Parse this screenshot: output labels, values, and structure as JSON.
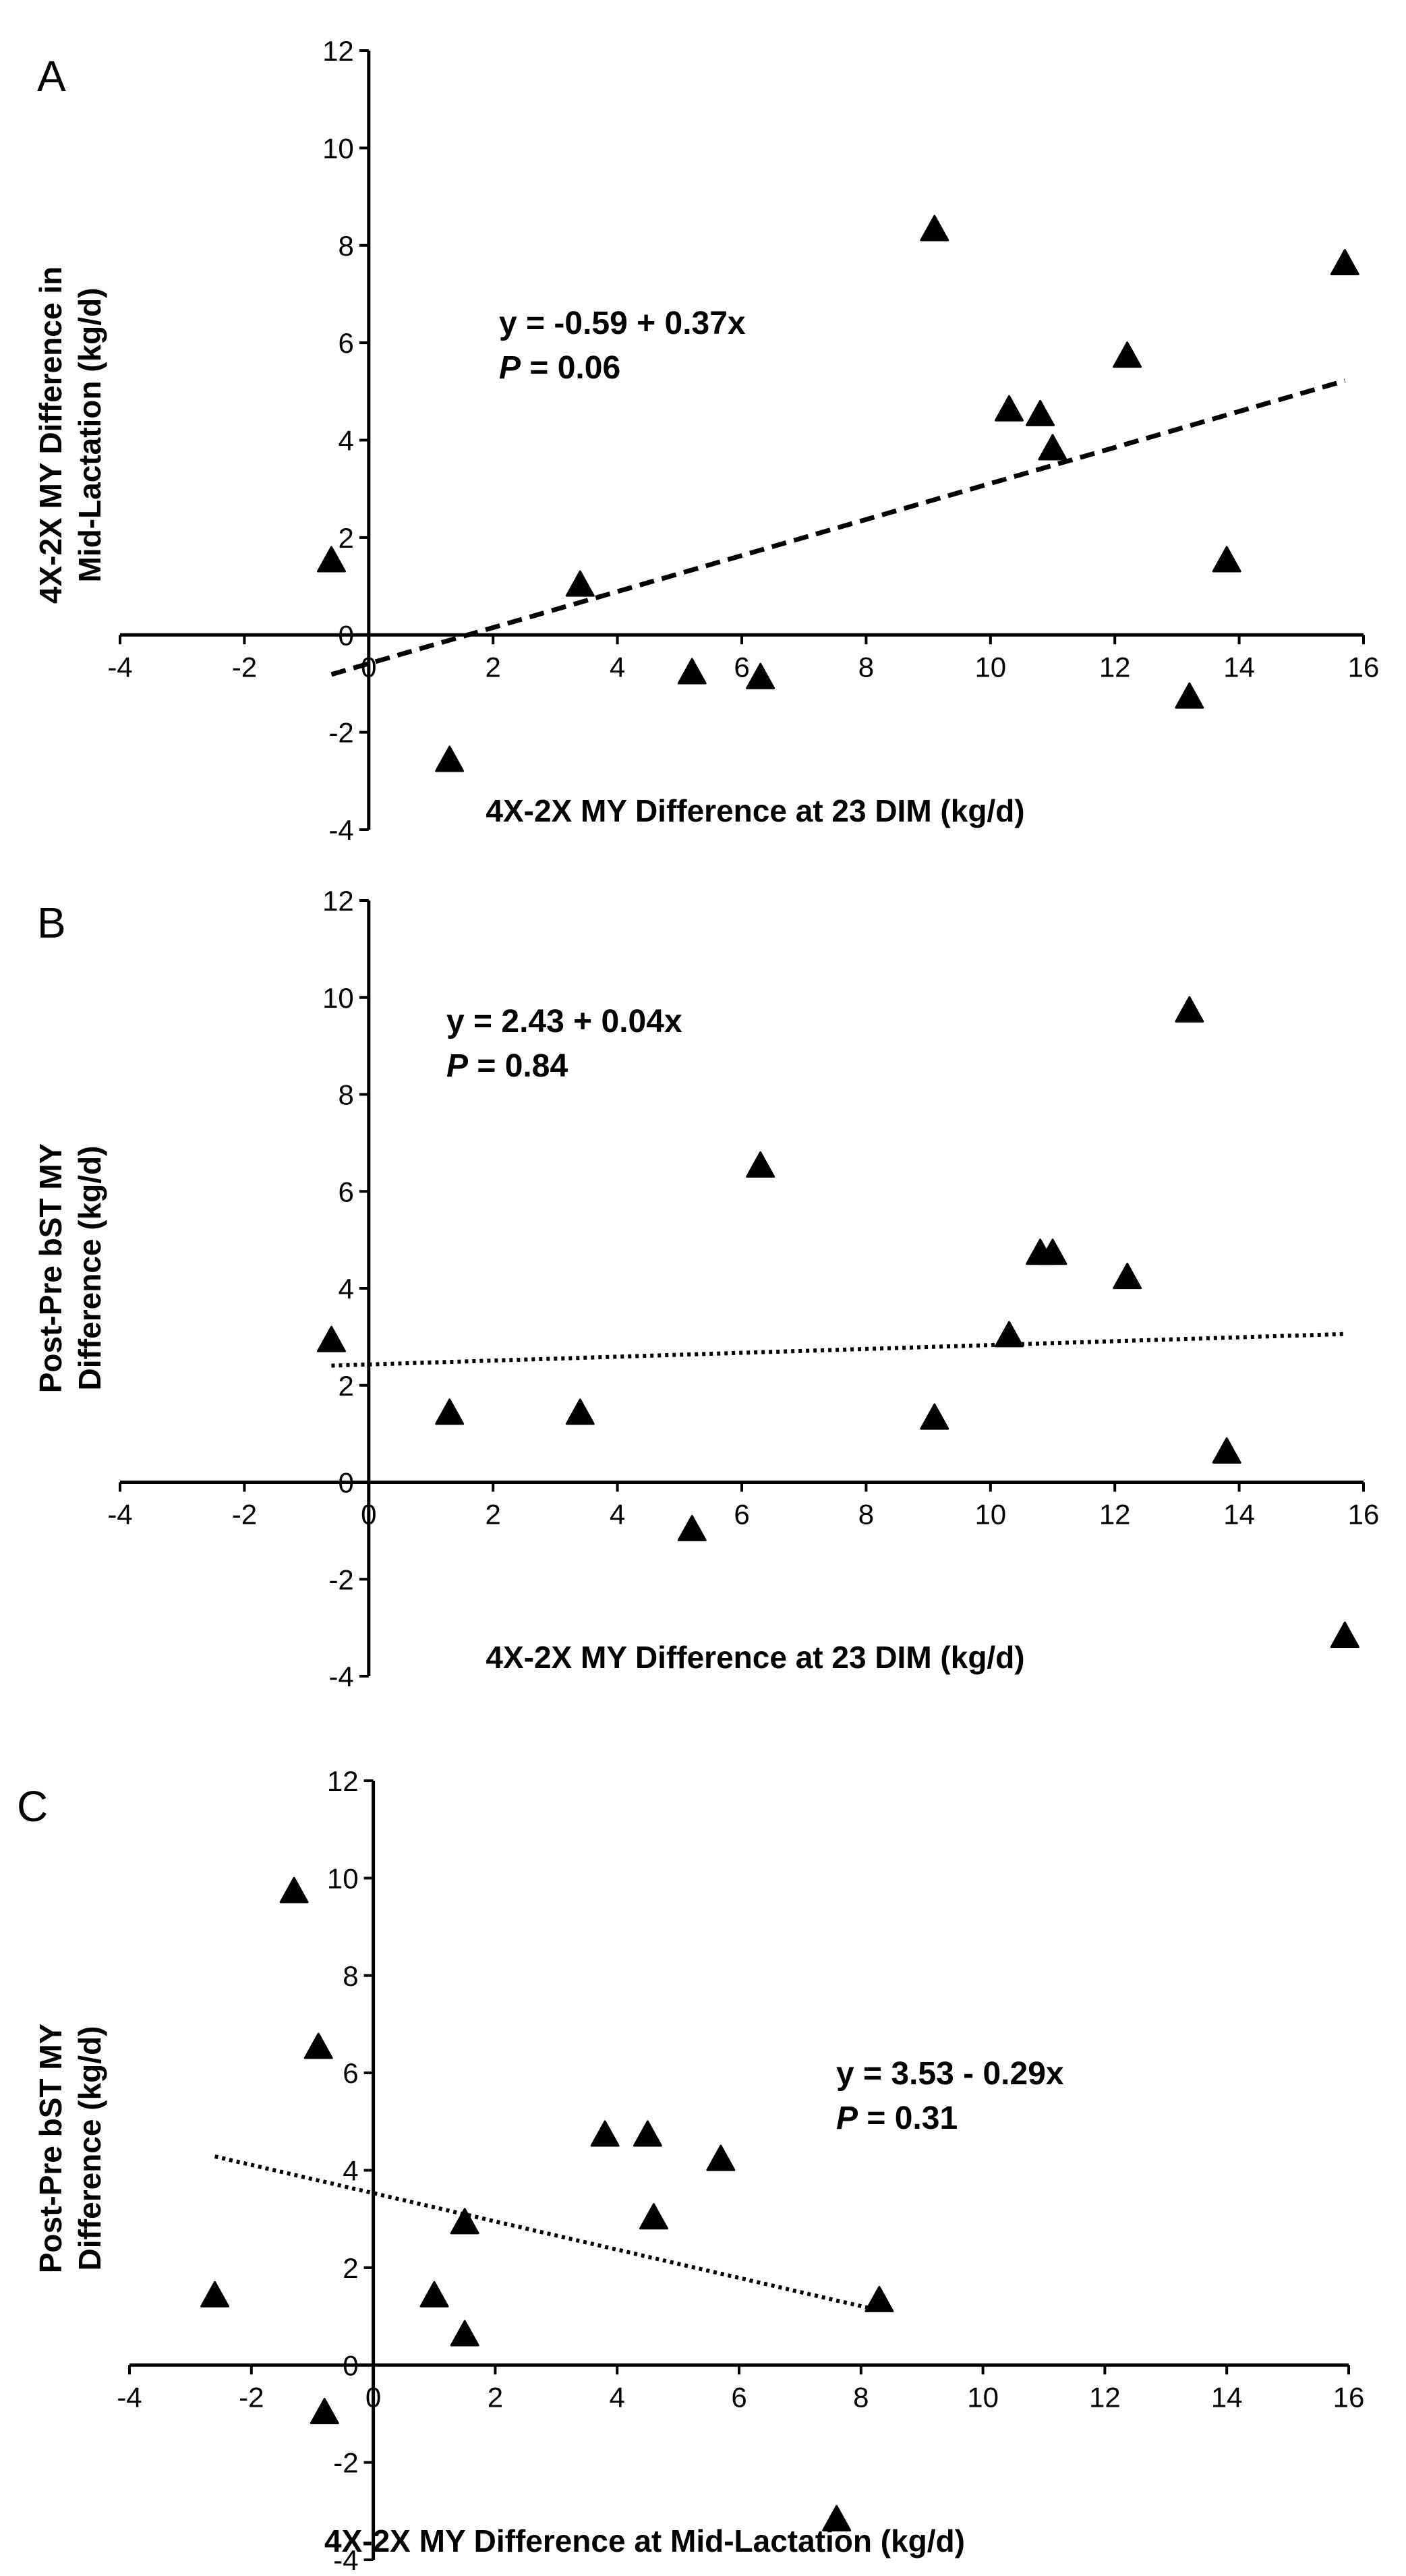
{
  "chart_data": [
    {
      "type": "scatter",
      "panel_label": "A",
      "xlabel": "4X-2X MY Difference at 23 DIM (kg/d)",
      "ylabel": [
        "4X-2X MY Difference in",
        "Mid-Lactation (kg/d)"
      ],
      "xlim": [
        -4,
        16
      ],
      "ylim": [
        -4,
        12
      ],
      "xticks": [
        "-4",
        "-2",
        "0",
        "2",
        "4",
        "6",
        "8",
        "10",
        "12",
        "14",
        "16"
      ],
      "yticks": [
        "-4",
        "-2",
        "0",
        "2",
        "4",
        "6",
        "8",
        "10",
        "12"
      ],
      "equation": "y = -0.59 + 0.37x",
      "p_label": "P",
      "p_value": "= 0.06",
      "trend": {
        "style": "dashed",
        "intercept": -0.59,
        "slope": 0.37,
        "x_range": [
          -0.6,
          15.7
        ]
      },
      "points": [
        {
          "x": -0.6,
          "y": 1.5
        },
        {
          "x": 1.3,
          "y": -2.6
        },
        {
          "x": 3.4,
          "y": 1.0
        },
        {
          "x": 5.2,
          "y": -0.8
        },
        {
          "x": 6.3,
          "y": -0.9
        },
        {
          "x": 9.1,
          "y": 8.3
        },
        {
          "x": 10.3,
          "y": 4.6
        },
        {
          "x": 10.8,
          "y": 4.5
        },
        {
          "x": 11.0,
          "y": 3.8
        },
        {
          "x": 12.2,
          "y": 5.7
        },
        {
          "x": 13.2,
          "y": -1.3
        },
        {
          "x": 13.8,
          "y": 1.5
        },
        {
          "x": 15.7,
          "y": 7.6
        }
      ]
    },
    {
      "type": "scatter",
      "panel_label": "B",
      "xlabel": "4X-2X MY Difference at 23 DIM (kg/d)",
      "ylabel": [
        "Post-Pre bST MY",
        "Difference (kg/d)"
      ],
      "xlim": [
        -4,
        16
      ],
      "ylim": [
        -4,
        12
      ],
      "xticks": [
        "-4",
        "-2",
        "0",
        "2",
        "4",
        "6",
        "8",
        "10",
        "12",
        "14",
        "16"
      ],
      "yticks": [
        "-4",
        "-2",
        "0",
        "2",
        "4",
        "6",
        "8",
        "10",
        "12"
      ],
      "equation": "y = 2.43 + 0.04x",
      "p_label": "P",
      "p_value": "= 0.84",
      "trend": {
        "style": "dotted",
        "intercept": 2.43,
        "slope": 0.04,
        "x_range": [
          -0.6,
          15.7
        ]
      },
      "points": [
        {
          "x": -0.6,
          "y": 2.9
        },
        {
          "x": 1.3,
          "y": 1.4
        },
        {
          "x": 3.4,
          "y": 1.4
        },
        {
          "x": 5.2,
          "y": -1.0
        },
        {
          "x": 6.3,
          "y": 6.5
        },
        {
          "x": 9.1,
          "y": 1.3
        },
        {
          "x": 10.3,
          "y": 3.0
        },
        {
          "x": 10.8,
          "y": 4.7
        },
        {
          "x": 11.0,
          "y": 4.7
        },
        {
          "x": 12.2,
          "y": 4.2
        },
        {
          "x": 13.2,
          "y": 9.7
        },
        {
          "x": 13.8,
          "y": 0.6
        },
        {
          "x": 15.7,
          "y": -3.2
        }
      ]
    },
    {
      "type": "scatter",
      "panel_label": "C",
      "xlabel": "4X-2X MY Difference at Mid-Lactation (kg/d)",
      "ylabel": [
        "Post-Pre bST MY",
        "Difference (kg/d)"
      ],
      "xlim": [
        -4,
        16
      ],
      "ylim": [
        -4,
        12
      ],
      "xticks": [
        "-4",
        "-2",
        "0",
        "2",
        "4",
        "6",
        "8",
        "10",
        "12",
        "14",
        "16"
      ],
      "yticks": [
        "-4",
        "-2",
        "0",
        "2",
        "4",
        "6",
        "8",
        "10",
        "12"
      ],
      "equation": "y = 3.53 - 0.29x",
      "p_label": "P",
      "p_value": "= 0.31",
      "trend": {
        "style": "dotted",
        "intercept": 3.53,
        "slope": -0.29,
        "x_range": [
          -2.6,
          8.3
        ]
      },
      "points": [
        {
          "x": -2.6,
          "y": 1.4
        },
        {
          "x": -1.3,
          "y": 9.7
        },
        {
          "x": -0.9,
          "y": 6.5
        },
        {
          "x": -0.8,
          "y": -1.0
        },
        {
          "x": 1.0,
          "y": 1.4
        },
        {
          "x": 1.5,
          "y": 2.9
        },
        {
          "x": 1.5,
          "y": 0.6
        },
        {
          "x": 3.8,
          "y": 4.7
        },
        {
          "x": 4.5,
          "y": 4.7
        },
        {
          "x": 4.6,
          "y": 3.0
        },
        {
          "x": 5.7,
          "y": 4.2
        },
        {
          "x": 7.6,
          "y": -3.2
        },
        {
          "x": 8.3,
          "y": 1.3
        }
      ]
    }
  ]
}
